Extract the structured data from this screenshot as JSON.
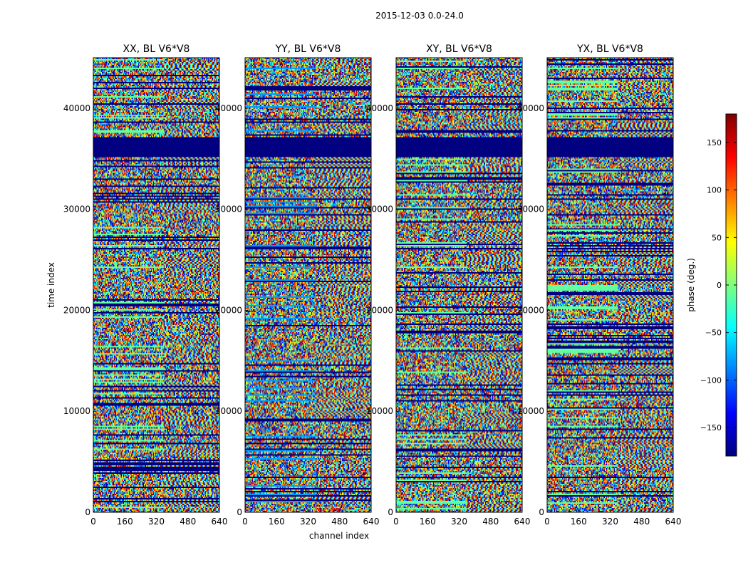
{
  "figure": {
    "suptitle": "2015-12-03 0.0-24.0"
  },
  "chart_data": {
    "type": "heatmap",
    "xlabel": "channel index",
    "ylabel": "time index",
    "xlim": [
      0,
      640
    ],
    "ylim": [
      0,
      45000
    ],
    "xticks": [
      0,
      160,
      320,
      480,
      640
    ],
    "yticks": [
      0,
      10000,
      20000,
      30000,
      40000
    ],
    "colorbar": {
      "label": "phase (deg.)",
      "range": [
        -180,
        180
      ],
      "ticks": [
        -150,
        -100,
        -50,
        0,
        50,
        100,
        150
      ],
      "tick_labels": [
        "−150",
        "−100",
        "−50",
        "0",
        "50",
        "100",
        "150"
      ],
      "colormap": "jet"
    },
    "panels": [
      {
        "title": "XX, BL V6*V8",
        "pol": "XX"
      },
      {
        "title": "YY, BL V6*V8",
        "pol": "YY"
      },
      {
        "title": "XY, BL V6*V8",
        "pol": "XY"
      },
      {
        "title": "YX, BL V6*V8",
        "pol": "YX"
      }
    ]
  }
}
